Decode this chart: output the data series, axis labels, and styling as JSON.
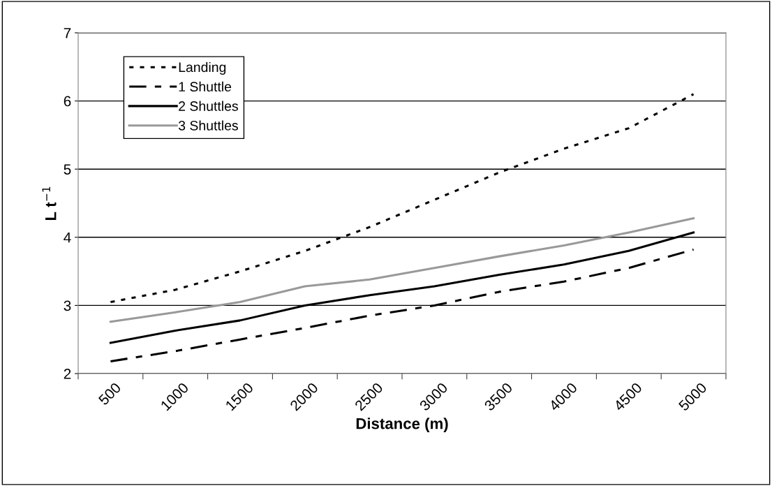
{
  "chart_data": {
    "type": "line",
    "xlabel": "Distance (m)",
    "ylabel": "L t$^{−1}$",
    "categories": [
      "500",
      "1000",
      "1500",
      "2000",
      "2500",
      "3000",
      "3500",
      "4000",
      "4500",
      "5000"
    ],
    "series": [
      {
        "name": "Landing",
        "color": "#000000",
        "line_style": "dotted",
        "values": [
          3.05,
          3.23,
          3.5,
          3.8,
          4.15,
          4.55,
          4.95,
          5.3,
          5.6,
          6.1
        ]
      },
      {
        "name": "1 Shuttle",
        "color": "#000000",
        "line_style": "dashed",
        "values": [
          2.18,
          2.33,
          2.5,
          2.67,
          2.85,
          3.0,
          3.2,
          3.35,
          3.55,
          3.82
        ]
      },
      {
        "name": "2 Shuttles",
        "color": "#000000",
        "line_style": "solid",
        "values": [
          2.45,
          2.63,
          2.78,
          3.0,
          3.15,
          3.28,
          3.45,
          3.6,
          3.8,
          4.07
        ]
      },
      {
        "name": "3 Shuttles",
        "color": "#999999",
        "line_style": "solid",
        "values": [
          2.76,
          2.9,
          3.05,
          3.28,
          3.38,
          3.55,
          3.72,
          3.88,
          4.07,
          4.28
        ]
      }
    ],
    "ylim": [
      2,
      7
    ],
    "yticks": [
      2,
      3,
      4,
      5,
      6,
      7
    ],
    "grid": "y",
    "legend": "top left",
    "marker": "none"
  }
}
